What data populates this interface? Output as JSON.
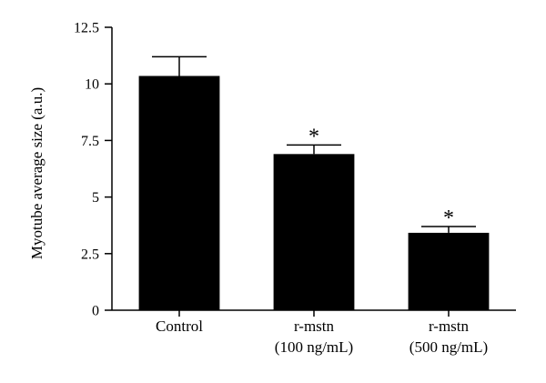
{
  "chart_data": {
    "type": "bar",
    "title": "",
    "xlabel": "",
    "ylabel": "Myotube average size (a.u.)",
    "ylim": [
      0,
      12.5
    ],
    "yticks": [
      "0",
      "2.5",
      "5",
      "7.5",
      "10",
      "12.5"
    ],
    "ytick_values": [
      0,
      2.5,
      5,
      7.5,
      10,
      12.5
    ],
    "categories": [
      [
        "Control"
      ],
      [
        "r-mstn",
        "(100 ng/mL)"
      ],
      [
        "r-mstn",
        "(500 ng/mL)"
      ]
    ],
    "values": [
      10.35,
      6.9,
      3.42
    ],
    "errors": [
      0.85,
      0.4,
      0.28
    ],
    "annotations": [
      "",
      "*",
      "*"
    ],
    "bar_color": "#000000",
    "grid": false,
    "legend": "none"
  }
}
